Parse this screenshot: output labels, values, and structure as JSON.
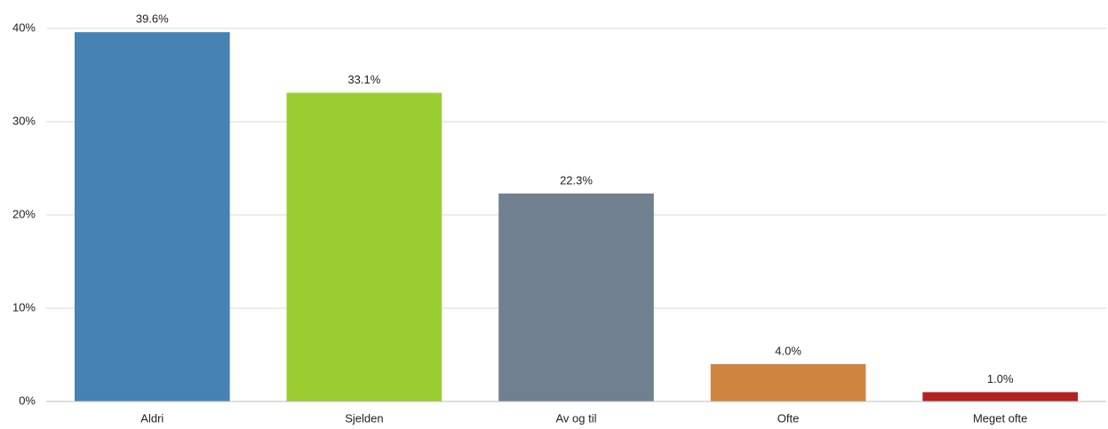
{
  "chart_data": {
    "type": "bar",
    "categories": [
      "Aldri",
      "Sjelden",
      "Av og til",
      "Ofte",
      "Meget ofte"
    ],
    "values": [
      39.6,
      33.1,
      22.3,
      4.0,
      1.0
    ],
    "value_labels": [
      "39.6%",
      "33.1%",
      "22.3%",
      "4.0%",
      "1.0%"
    ],
    "colors": [
      "#4682b4",
      "#9acd32",
      "#708090",
      "#cd853f",
      "#b22222"
    ],
    "ylim": [
      0,
      40
    ],
    "yticks": [
      {
        "value": 0,
        "label": "0%"
      },
      {
        "value": 10,
        "label": "10%"
      },
      {
        "value": 20,
        "label": "20%"
      },
      {
        "value": 30,
        "label": "30%"
      },
      {
        "value": 40,
        "label": "40%"
      }
    ],
    "grid": true
  }
}
